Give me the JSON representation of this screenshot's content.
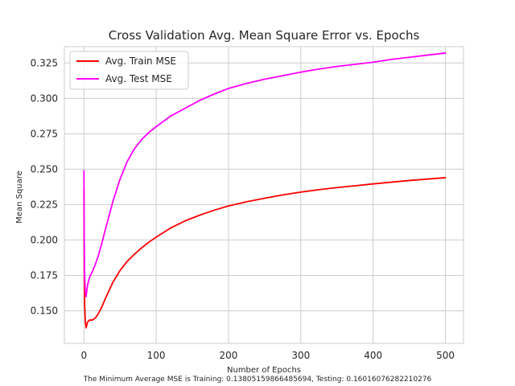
{
  "chart_data": {
    "type": "line",
    "title": "Cross Validation Avg. Mean Square Error vs. Epochs",
    "xlabel": "Number of Epochs",
    "ylabel": "Mean Square",
    "xlim": [
      -27,
      525
    ],
    "ylim": [
      0.127,
      0.3365
    ],
    "xticks": [
      0,
      100,
      200,
      300,
      400,
      500
    ],
    "yticks": [
      0.15,
      0.175,
      0.2,
      0.225,
      0.25,
      0.275,
      0.3,
      0.325
    ],
    "xtick_labels": [
      "0",
      "100",
      "200",
      "300",
      "400",
      "500"
    ],
    "ytick_labels": [
      "0.150",
      "0.175",
      "0.200",
      "0.225",
      "0.250",
      "0.275",
      "0.300",
      "0.325"
    ],
    "grid": true,
    "legend_position": "top-left",
    "footnote": "The Minimum Average MSE is Training: 0.13805159866485694, Testing: 0.16016076282210276",
    "series": [
      {
        "name": "Avg. Train MSE",
        "color": "#ff0000",
        "x": [
          0,
          0.5,
          1,
          2,
          3,
          5,
          8,
          12,
          16,
          20,
          25,
          30,
          40,
          50,
          60,
          70,
          80,
          90,
          100,
          120,
          140,
          160,
          180,
          200,
          225,
          250,
          275,
          300,
          325,
          350,
          375,
          400,
          425,
          450,
          475,
          500
        ],
        "y": [
          0.236,
          0.175,
          0.155,
          0.142,
          0.138,
          0.142,
          0.1435,
          0.1435,
          0.145,
          0.148,
          0.153,
          0.159,
          0.17,
          0.1785,
          0.185,
          0.19,
          0.1945,
          0.1985,
          0.202,
          0.2085,
          0.2135,
          0.2175,
          0.221,
          0.224,
          0.227,
          0.2295,
          0.2318,
          0.2338,
          0.2355,
          0.237,
          0.2383,
          0.2396,
          0.2408,
          0.242,
          0.243,
          0.244
        ]
      },
      {
        "name": "Avg. Test MSE",
        "color": "#ff00ff",
        "x": [
          0,
          0.5,
          1,
          2,
          3,
          5,
          8,
          12,
          16,
          20,
          25,
          30,
          40,
          50,
          60,
          70,
          80,
          90,
          100,
          120,
          140,
          160,
          180,
          200,
          225,
          250,
          275,
          300,
          325,
          350,
          375,
          400,
          425,
          450,
          475,
          500
        ],
        "y": [
          0.249,
          0.2,
          0.175,
          0.163,
          0.16,
          0.168,
          0.174,
          0.178,
          0.183,
          0.189,
          0.198,
          0.208,
          0.227,
          0.243,
          0.2555,
          0.2645,
          0.271,
          0.276,
          0.28,
          0.2875,
          0.293,
          0.2985,
          0.303,
          0.307,
          0.3105,
          0.3135,
          0.316,
          0.3185,
          0.3207,
          0.3225,
          0.324,
          0.3255,
          0.3275,
          0.329,
          0.3305,
          0.332
        ]
      }
    ]
  }
}
